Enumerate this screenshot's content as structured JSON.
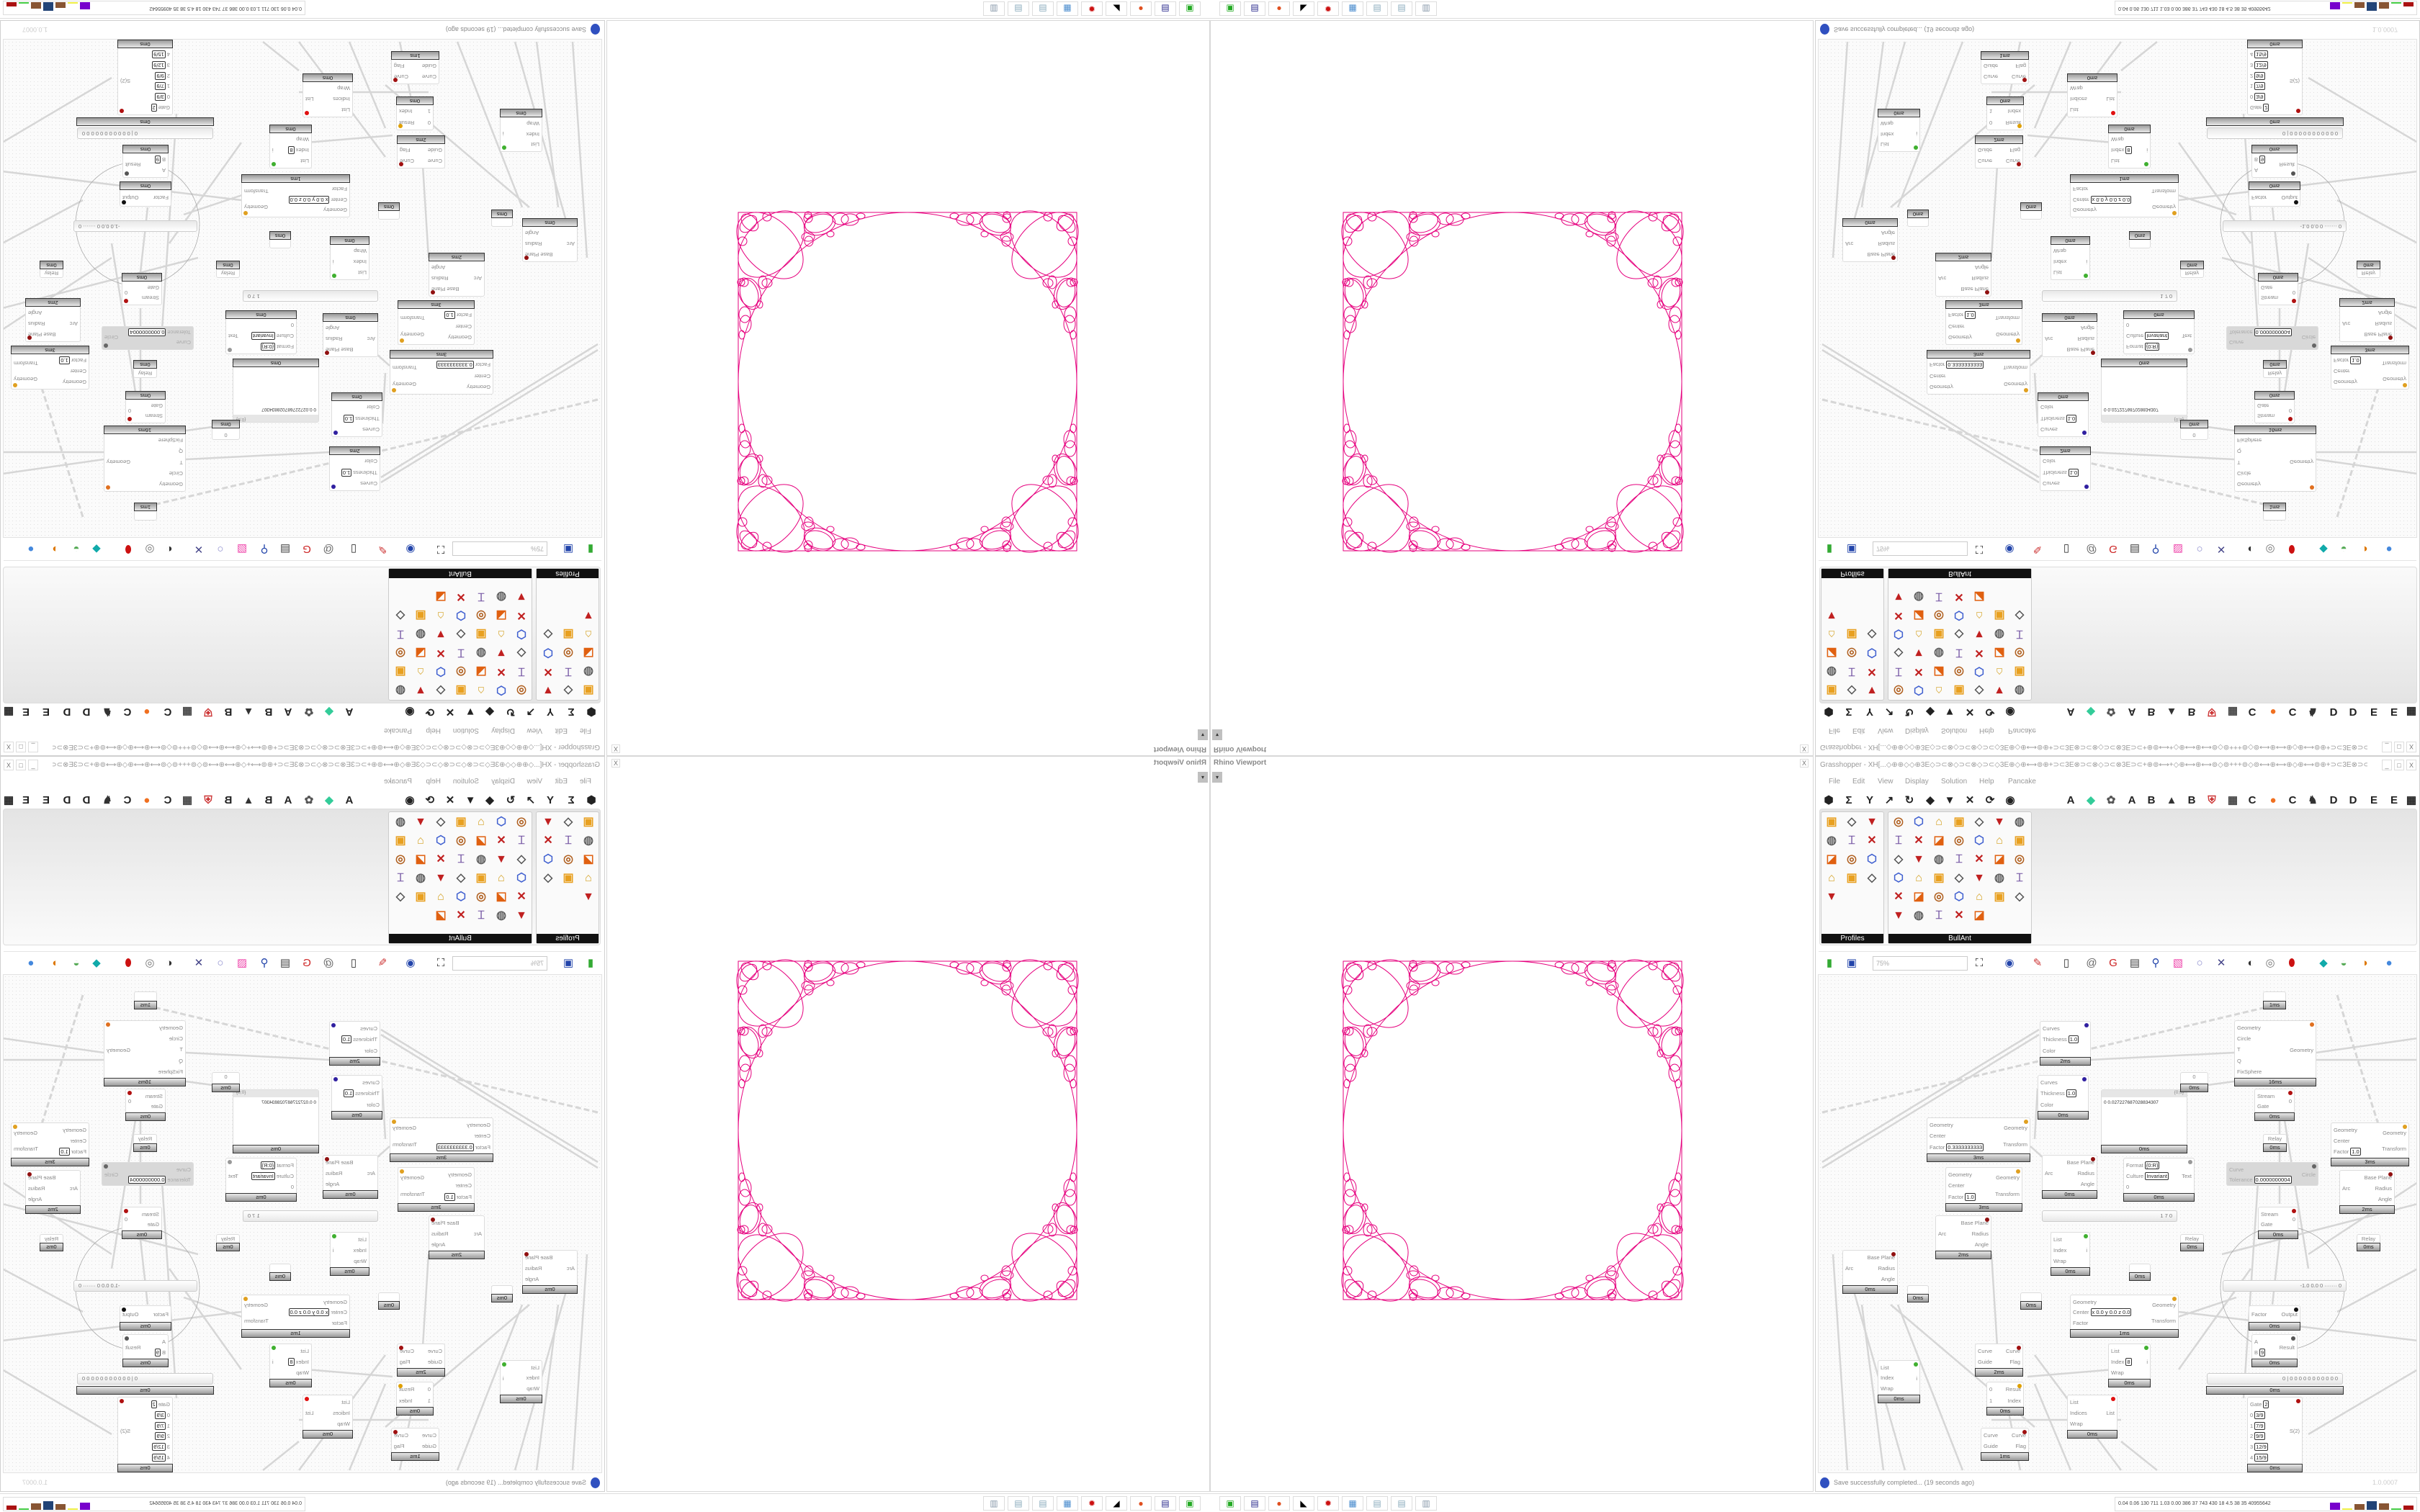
{
  "viewport": {
    "title": "Rhino Viewport",
    "close": "X",
    "dropdown": "▾",
    "curve_color": "#e6007e"
  },
  "grasshopper": {
    "title": "Grasshopper - XH[...◇⊕⊕◇◇⊕3E◇⊃⊂⊗◇⊃⊂⊗◇⊃⊂◇3E⊕◇⊕⟷⊚⊕+⊃⊂3E⊗⊃⊂⊗◇⊃⊂⊗3E⊃⊂+⊕⊚⟷+◇⊕⟷⊕⟷⊚◇⊚+++⊚◇⊚⟷⊕⟷⊕◇⊕⟷⊚⊕+⊃⊂3E⊗⊃⊂⊗◇⊃⊂...",
    "window_buttons": [
      "_",
      "□",
      "X"
    ],
    "menu": [
      "File",
      "Edit",
      "View",
      "Display",
      "Solution",
      "Help",
      "Pancake"
    ],
    "tab_icons_left": [
      "params-icon",
      "maths-icon",
      "sets-icon",
      "vector-icon",
      "curve-icon",
      "surface-icon",
      "mesh-icon",
      "intersect-icon",
      "transform-icon",
      "display-icon"
    ],
    "tab_icons_right": [
      {
        "icon": "tab-a-icon",
        "text": "A"
      },
      {
        "icon": "green-gem-icon",
        "text": ""
      },
      {
        "icon": "gear-cluster-icon",
        "text": ""
      },
      {
        "icon": "tab-a2-icon",
        "text": "A"
      },
      {
        "icon": "tab-b-icon",
        "text": "B"
      },
      {
        "icon": "mountain-icon",
        "text": ""
      },
      {
        "icon": "tab-b2-icon",
        "text": "B"
      },
      {
        "icon": "shield-icon",
        "text": ""
      },
      {
        "icon": "grid-icon",
        "text": ""
      },
      {
        "icon": "tab-c-icon",
        "text": "C"
      },
      {
        "icon": "orange-dot-icon",
        "text": ""
      },
      {
        "icon": "tab-c2-icon",
        "text": "C"
      },
      {
        "icon": "chicken-icon",
        "text": ""
      },
      {
        "icon": "tab-d-icon",
        "text": "D"
      },
      {
        "icon": "tab-d2-icon",
        "text": "D"
      },
      {
        "icon": "tab-e-icon",
        "text": "E"
      },
      {
        "icon": "tab-e2-icon",
        "text": "E"
      },
      {
        "icon": "more-tabs-icon",
        "text": ""
      }
    ],
    "panels": [
      {
        "label": "Profiles",
        "icons": [
          "profile-rhs-icon",
          "profile-channel-icon",
          "profile-extrude-icon",
          "profile-rhs2-icon",
          "profile-pipe-icon",
          "profile-i-beam-icon",
          "profile-box-icon",
          "profile-i-beam2-icon",
          "profile-box2-icon",
          "profile-angle-icon",
          "profile-rhs3-icon",
          "profile-tube-icon",
          "profile-point-icon"
        ]
      },
      {
        "label": "BullAnt",
        "icons": [
          "box-icon",
          "flower-icon",
          "v-icon",
          "cone-icon",
          "array-icon",
          "warp-icon",
          "fold-icon",
          "ring-icon",
          "plane-icon",
          "columns-icon",
          "x-frame-icon",
          "v-frame-icon",
          "lock-icon",
          "fold2-icon",
          "ring2-icon",
          "cube-icon",
          "bend-icon",
          "x-frame2-icon",
          "v-frame2-icon",
          "lock2-icon",
          "fold3-icon",
          "gear-ring-icon",
          "curve-icon",
          "nodes-icon",
          "bend2-icon",
          "frame-icon",
          "lock3-icon",
          "cube2-icon",
          "box2-icon",
          "curve2-icon",
          "array2-icon",
          "bend3-icon",
          "frame2-icon",
          "lock4-icon",
          "gem-icon",
          "panel-icon",
          "x-frame3-icon",
          "array3-icon",
          "warp2-icon",
          "rainbow-icon"
        ]
      }
    ],
    "toolbar": {
      "zoom": "75%",
      "icons": [
        "open-file-icon",
        "save-icon",
        "zoom-extents-icon",
        "preview-eye-icon",
        "sketch-icon",
        "cluster-icon",
        "email-icon",
        "gha-icon",
        "canvas-image-icon",
        "search-icon",
        "package-icon",
        "bulb-icon",
        "wires-icon",
        "preview-off-icon",
        "wireframe-icon",
        "shaded-icon",
        "preview-mesh-icon",
        "selected-icon",
        "shade-toggle-icon",
        "blob-icon"
      ]
    },
    "canvas": {
      "nodes": [
        {
          "type": "relay",
          "time": "1ms"
        },
        {
          "in": [
            {
              "l": "Curves"
            },
            {
              "l": "Thickness",
              "v": "1.0"
            },
            {
              "l": "Color"
            }
          ],
          "out": [],
          "icon": "custom-preview-icon",
          "time": "2ms"
        },
        {
          "in": [
            {
              "l": "Curves"
            },
            {
              "l": "Thickness",
              "v": "1.0"
            },
            {
              "l": "Color"
            }
          ],
          "out": [],
          "icon": "custom-preview-icon",
          "time": "0ms"
        },
        {
          "in": [
            {
              "l": "Geometry"
            },
            {
              "l": "Center"
            },
            {
              "l": "Factor",
              "v": "0.3333333333"
            }
          ],
          "out": [
            "Geometry",
            "Transform"
          ],
          "icon": "scale-icon",
          "time": "3ms"
        },
        {
          "in": [
            {
              "l": "Geometry"
            },
            {
              "l": "Center"
            },
            {
              "l": "Factor",
              "v": "1.0"
            }
          ],
          "out": [
            "Geometry",
            "Transform"
          ],
          "icon": "scale-icon",
          "time": "3ms"
        },
        {
          "type": "panel",
          "header": "{0;0}",
          "text": "0  0.027227687028834307",
          "time": "0ms"
        },
        {
          "type": "relay",
          "label": "0",
          "time": "0ms"
        },
        {
          "in": [
            {
              "l": "Geometry"
            },
            {
              "l": "Circle"
            },
            {
              "l": "T"
            },
            {
              "l": "Q"
            },
            {
              "l": "FixSphere"
            }
          ],
          "out": [
            "Geometry"
          ],
          "icon": "kangaroo-icon",
          "time": "16ms"
        },
        {
          "in": [
            {
              "l": "Stream"
            },
            {
              "l": "Gate"
            }
          ],
          "out": [
            "0"
          ],
          "icon": "stream-gate-icon",
          "time": "0ms"
        },
        {
          "type": "relay",
          "label": "Relay",
          "time": "0ms"
        },
        {
          "in": [
            {
              "l": "Geometry"
            },
            {
              "l": "Center"
            },
            {
              "l": "Factor",
              "v": "1.0"
            }
          ],
          "out": [
            "Geometry",
            "Transform"
          ],
          "icon": "scale-icon",
          "time": "3ms"
        },
        {
          "type": "disabled",
          "in": [
            {
              "l": "Curve"
            },
            {
              "l": "Tolerance",
              "v": "0.0000000004"
            }
          ],
          "out": [
            "Circle"
          ],
          "icon": "fit-circle-icon"
        },
        {
          "in": [
            {
              "l": "Arc"
            }
          ],
          "out": [
            "Base Plane",
            "Radius",
            "Angle"
          ],
          "icon": "deconstruct-arc-icon",
          "time": "2ms"
        },
        {
          "in": [
            {
              "l": "Arc"
            }
          ],
          "out": [
            "Base Plane",
            "Radius",
            "Angle"
          ],
          "icon": "deconstruct-arc-icon",
          "time": "0ms"
        },
        {
          "in": [
            {
              "l": "Format",
              "v": "{0:R}"
            },
            {
              "l": "Culture",
              "v": "Invariant"
            },
            {
              "l": "0"
            }
          ],
          "out": [
            "Text"
          ],
          "icon": "format-icon",
          "time": "0ms"
        },
        {
          "type": "slider",
          "value": "1 7 0"
        },
        {
          "in": [
            {
              "l": "Stream"
            },
            {
              "l": "Gate"
            }
          ],
          "out": [
            "0"
          ],
          "icon": "stream-gate-icon",
          "time": "0ms"
        },
        {
          "type": "relay",
          "label": "Relay",
          "time": "0ms"
        },
        {
          "type": "relay",
          "label": "Relay",
          "time": "0ms"
        },
        {
          "in": [
            {
              "l": "Arc"
            }
          ],
          "out": [
            "Base Plane",
            "Radius",
            "Angle"
          ],
          "icon": "deconstruct-arc-icon",
          "time": "2ms"
        },
        {
          "in": [
            {
              "l": "Arc"
            }
          ],
          "out": [
            "Base Plane",
            "Radius",
            "Angle"
          ],
          "icon": "deconstruct-arc-icon",
          "time": "0ms"
        },
        {
          "in": [
            {
              "l": "List"
            },
            {
              "l": "Index"
            },
            {
              "l": "Wrap"
            }
          ],
          "out": [
            "i"
          ],
          "icon": "list-item-icon",
          "time": "0ms"
        },
        {
          "type": "relay",
          "time": "0ms"
        },
        {
          "type": "relay",
          "time": "0ms"
        },
        {
          "type": "relay",
          "time": "0ms"
        },
        {
          "in": [
            {
              "l": "Geometry"
            },
            {
              "l": "Center",
              "v": "x 0.0 y 0.0 z 0.0"
            },
            {
              "l": "Factor"
            }
          ],
          "out": [
            "Geometry",
            "Transform"
          ],
          "icon": "scale-nu-icon",
          "time": "1ms"
        },
        {
          "type": "slider",
          "value": "-1.0  0.0  0  ······· 0"
        },
        {
          "in": [
            {
              "l": "Factor"
            }
          ],
          "out": [
            "Output"
          ],
          "icon": "pi-icon",
          "time": "0ms"
        },
        {
          "in": [
            {
              "l": "A"
            },
            {
              "l": "B",
              "v": "9"
            }
          ],
          "out": [
            "Result"
          ],
          "icon": "division-icon",
          "time": "0ms"
        },
        {
          "type": "slider",
          "value": "0 | 0 0 0 0 0 0 0 0 0 0 0",
          "time": "0ms"
        },
        {
          "in": [
            {
              "l": "Gate",
              "v": "2"
            },
            {
              "l": "0",
              "v": "3/9"
            },
            {
              "l": "1",
              "v": "7/9"
            },
            {
              "l": "2",
              "v": "9/9"
            },
            {
              "l": "3",
              "v": "12/9"
            },
            {
              "l": "4",
              "v": "15/9"
            }
          ],
          "out": [
            "S(2)"
          ],
          "icon": "stream-filter-icon",
          "time": "0ms"
        },
        {
          "in": [
            {
              "l": "List"
            },
            {
              "l": "Index"
            },
            {
              "l": "Wrap"
            }
          ],
          "out": [
            "i"
          ],
          "icon": "list-item-icon",
          "time": "0ms"
        },
        {
          "in": [
            {
              "l": "Curve"
            },
            {
              "l": "Guide"
            }
          ],
          "out": [
            "Curve",
            "Flag"
          ],
          "icon": "flip-curve-icon",
          "time": "2ms"
        },
        {
          "in": [
            {
              "l": "0"
            },
            {
              "l": "1"
            }
          ],
          "out": [
            "Result",
            "Index"
          ],
          "icon": "gate-icon",
          "time": "0ms"
        },
        {
          "in": [
            {
              "l": "Curve"
            },
            {
              "l": "Guide"
            }
          ],
          "out": [
            "Curve",
            "Flag"
          ],
          "icon": "flip-curve-icon",
          "time": "1ms"
        },
        {
          "in": [
            {
              "l": "List"
            },
            {
              "l": "Index",
              "v": "8"
            },
            {
              "l": "Wrap"
            }
          ],
          "out": [
            "i"
          ],
          "icon": "list-item-icon",
          "time": "0ms"
        },
        {
          "in": [
            {
              "l": "List"
            },
            {
              "l": "Indices"
            },
            {
              "l": "Wrap"
            }
          ],
          "out": [
            "List"
          ],
          "icon": "cull-index-icon",
          "time": "0ms"
        }
      ]
    },
    "status": {
      "message": "Save successfully completed... (19 seconds ago)",
      "version": "1.0.0007"
    }
  },
  "taskbar": {
    "apps": [
      "terminal-icon",
      "floppy-64-icon",
      "firefox-icon",
      "rhino-icon",
      "red-gear-app-icon",
      "calculator-icon",
      "notepad-icon",
      "notepad2-icon",
      "scanner-icon"
    ],
    "tray": "0.04 0.06 130 711 1.03 0.00 386  37  743 430  18  4.5  38  35  40955642"
  }
}
